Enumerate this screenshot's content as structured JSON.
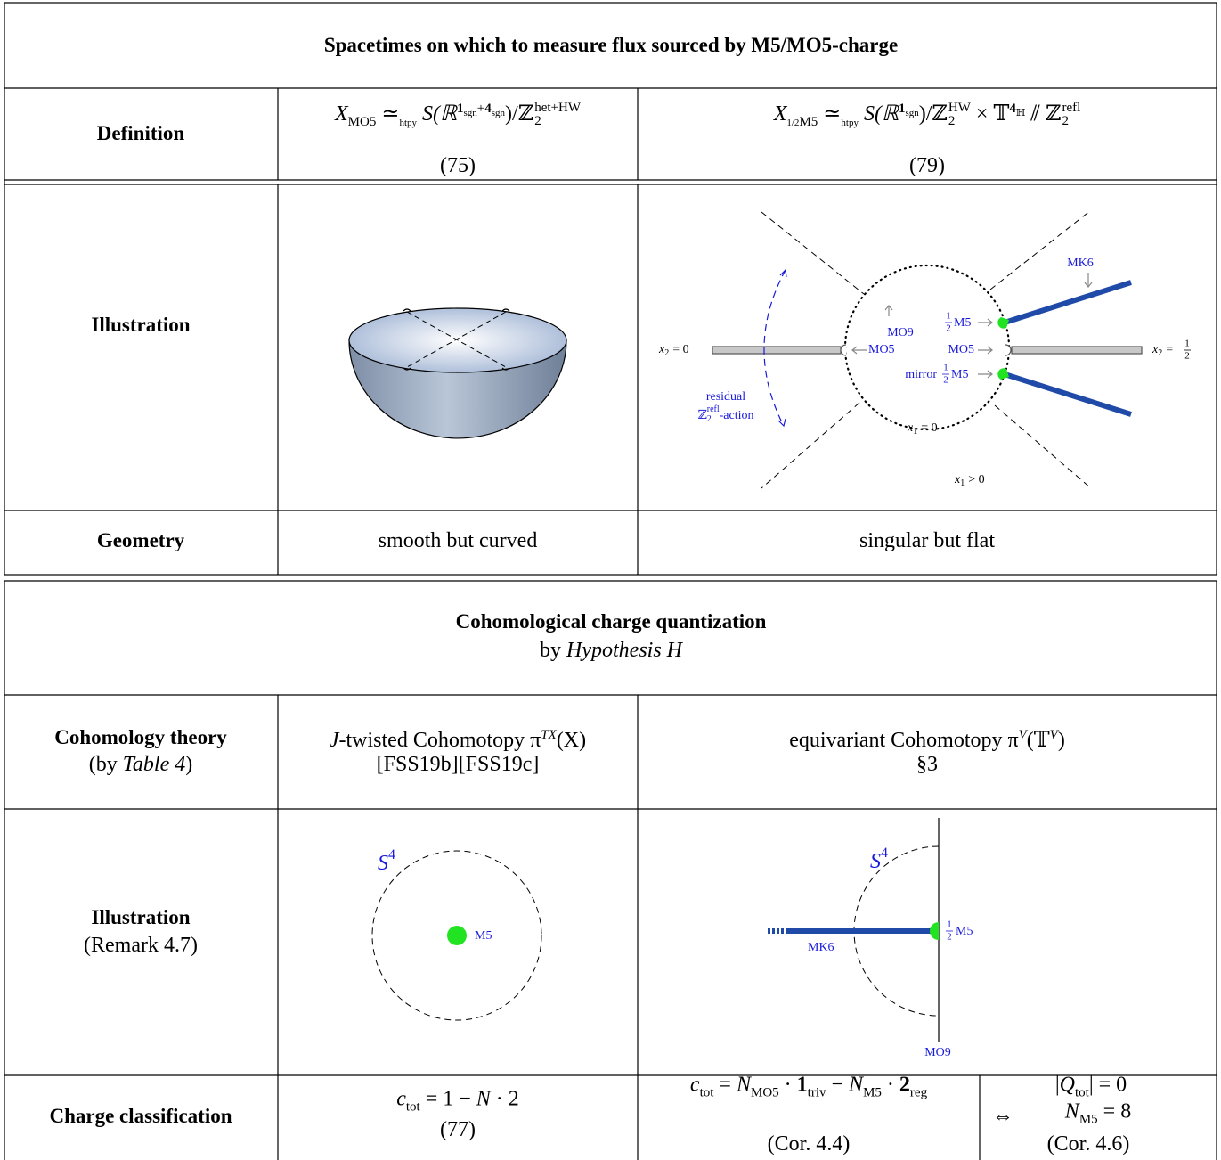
{
  "table1": {
    "title": "Spacetimes on which to measure flux sourced by M5/MO5-charge",
    "definition": {
      "label": "Definition",
      "col1": {
        "formula": [
          "X",
          "MO5",
          "≃",
          "htpy",
          "S(ℝ",
          "1",
          "sgn",
          "+",
          "4",
          "sgn",
          ")/ℤ",
          "2",
          "het+HW"
        ],
        "ref": "(75)"
      },
      "col2": {
        "formula": [
          "X",
          "1/2",
          "M5",
          "≃",
          "htpy",
          "S(ℝ",
          "1",
          "sgn",
          ")/ℤ",
          "2",
          "HW",
          "× 𝕋",
          "4",
          "ℍ",
          "⫽ ℤ",
          "2",
          "refl"
        ],
        "ref": "(79)"
      }
    },
    "illustration": {
      "label": "Illustration",
      "col2": {
        "mk6": "MK6",
        "mo9": "MO9",
        "half_m5": {
          "num": "1",
          "den": "2",
          "text": "M5"
        },
        "mo5_left": "MO5",
        "mo5_right": "MO5",
        "mirror": {
          "text": "mirror",
          "num": "1",
          "den": "2",
          "suffix": "M5"
        },
        "x2_left": {
          "var": "x",
          "sub": "2",
          "rel": "= 0"
        },
        "x2_right": {
          "var": "x",
          "sub": "2",
          "rel": "=",
          "num": "1",
          "den": "2"
        },
        "residual": "residual",
        "action": {
          "base": "ℤ",
          "sub": "2",
          "sup": "refl",
          "text": "-action"
        },
        "x1_zero": {
          "var": "x",
          "sub": "1",
          "rel": "= 0"
        },
        "x1_pos": {
          "var": "x",
          "sub": "1",
          "rel": "> 0"
        }
      }
    },
    "geometry": {
      "label": "Geometry",
      "col1": "smooth but curved",
      "col2": "singular but flat"
    }
  },
  "table2": {
    "title": "Cohomological charge quantization",
    "subtitle": [
      "by",
      "Hypothesis H"
    ],
    "theory": {
      "label": "Cohomology theory",
      "note": [
        "(by",
        "Table 4",
        ")"
      ],
      "col1": {
        "formula": [
          "J",
          "-twisted Cohomotopy π",
          "TX",
          "(X)"
        ],
        "ref": "[FSS19b][FSS19c]"
      },
      "col2": {
        "formula": [
          "equivariant Cohomotopy π",
          "V",
          "(𝕋",
          "V",
          ")"
        ],
        "ref": "§3"
      }
    },
    "illustration": {
      "label": "Illustration",
      "note": "(Remark 4.7)",
      "col1": {
        "sphere": [
          "S",
          "4"
        ],
        "m5": "M5"
      },
      "col2": {
        "sphere": [
          "S",
          "4"
        ],
        "mk6": "MK6",
        "half_m5": {
          "num": "1",
          "den": "2",
          "text": "M5"
        },
        "mo9": "MO9"
      }
    },
    "classification": {
      "label": "Charge classification",
      "col1": {
        "formula": [
          "c",
          "tot",
          "= 1 − ",
          "N",
          " · 2"
        ],
        "ref": "(77)"
      },
      "col2": {
        "formula": [
          "c",
          "tot",
          "= ",
          "N",
          "MO5",
          " · ",
          "1",
          "triv",
          " − ",
          "N",
          "M5",
          " · ",
          "2",
          "reg"
        ],
        "ref": "(Cor. 4.4)"
      },
      "col3": {
        "symbol": "⇔",
        "line1": [
          "|",
          "Q",
          "tot",
          "|",
          "= 0"
        ],
        "line2": [
          "N",
          "M5",
          "= 8"
        ],
        "ref": "(Cor. 4.6)"
      }
    }
  }
}
